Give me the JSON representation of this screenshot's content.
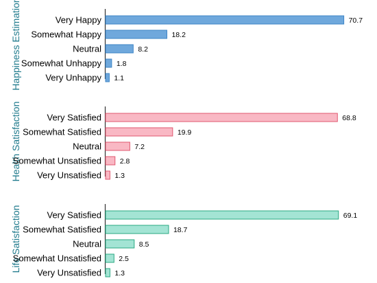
{
  "chart_data": [
    {
      "type": "bar",
      "orientation": "horizontal",
      "panel_label": "Happiness Estimation",
      "categories": [
        "Very Happy",
        "Somewhat Happy",
        "Neutral",
        "Somewhat Unhappy",
        "Very Unhappy"
      ],
      "values": [
        70.7,
        18.2,
        8.2,
        1.8,
        1.1
      ],
      "value_labels": [
        "70.7",
        "18.2",
        "8.2",
        "1.8",
        "1.1"
      ],
      "xlim": [
        0,
        72
      ],
      "grid": false,
      "fill_color": "#6fa8dc",
      "stroke_color": "#3d85c6"
    },
    {
      "type": "bar",
      "orientation": "horizontal",
      "panel_label": "Health Satisfaction",
      "categories": [
        "Very Satisfied",
        "Somewhat Satisfied",
        "Neutral",
        "Somewhat Unsatisfied",
        "Very Unsatisfied"
      ],
      "values": [
        68.8,
        19.9,
        7.2,
        2.8,
        1.3
      ],
      "value_labels": [
        "68.8",
        "19.9",
        "7.2",
        "2.8",
        "1.3"
      ],
      "xlim": [
        0,
        72
      ],
      "grid": false,
      "fill_color": "#f9b8c4",
      "stroke_color": "#e0576f"
    },
    {
      "type": "bar",
      "orientation": "horizontal",
      "panel_label": "Life Satisfaction",
      "categories": [
        "Very Satisfied",
        "Somewhat Satisfied",
        "Neutral",
        "Somewhat Unsatisfied",
        "Very Unsatisfied"
      ],
      "values": [
        69.1,
        18.7,
        8.5,
        2.5,
        1.3
      ],
      "value_labels": [
        "69.1",
        "18.7",
        "8.5",
        "2.5",
        "1.3"
      ],
      "xlim": [
        0,
        72
      ],
      "grid": false,
      "fill_color": "#a3e4d4",
      "stroke_color": "#2aa882"
    }
  ],
  "colors": {
    "panel_label": "#1f7a8c",
    "axis": "#333333",
    "text": "#000000"
  }
}
